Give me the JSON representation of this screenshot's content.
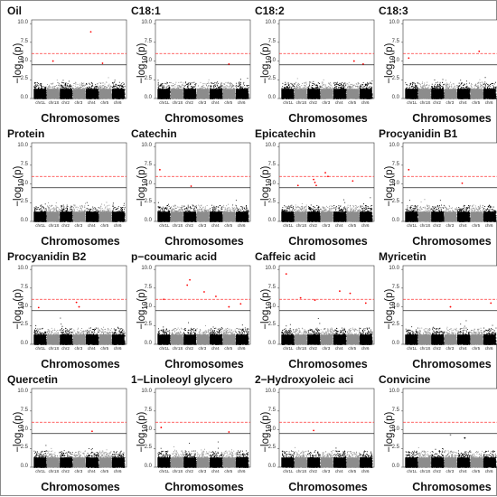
{
  "figure": {
    "panels": [
      {
        "title": "Oil"
      },
      {
        "title": "C18:1"
      },
      {
        "title": "C18:2"
      },
      {
        "title": "C18:3"
      },
      {
        "title": "Protein"
      },
      {
        "title": "Catechin"
      },
      {
        "title": "Epicatechin"
      },
      {
        "title": "Procyanidin B1"
      },
      {
        "title": "Procyanidin B2"
      },
      {
        "title": "p−coumaric acid"
      },
      {
        "title": "Caffeic acid"
      },
      {
        "title": "Myricetin"
      },
      {
        "title": "Quercetin"
      },
      {
        "title": "1−Linoleoyl glycero"
      },
      {
        "title": "2−Hydroxyoleic aci"
      },
      {
        "title": "Convicine"
      }
    ]
  },
  "chart_data": {
    "type": "scatter",
    "layout": "4x4 grid of Manhattan plots",
    "shared": {
      "xlabel": "Chromosomes",
      "ylabel_parts": [
        "−log",
        "10",
        "(p)"
      ],
      "chromosomes": [
        "chr1L",
        "chr1S",
        "chr2",
        "chr3",
        "chr4",
        "chr5",
        "chr6"
      ],
      "yticks": [
        "0.0",
        "2.5",
        "5.0",
        "7.5",
        "10.0"
      ],
      "ylim": [
        0,
        10.5
      ],
      "thresholds": [
        {
          "value": 6.0,
          "color": "#ff3333",
          "style": "dashed"
        },
        {
          "value": 4.5,
          "color": "#222222",
          "style": "solid"
        }
      ],
      "chromosome_colors": [
        "#000000",
        "#8c8c8c"
      ],
      "background_max_by_chromosome": [
        4.1,
        3.9,
        4.2,
        4.0,
        4.3,
        4.0,
        3.8
      ],
      "grid": false
    },
    "significant_points": [
      {
        "panel": "Oil",
        "points": [
          {
            "chr": "chr4",
            "pos": 0.4,
            "y": 8.9
          },
          {
            "chr": "chr5",
            "pos": 0.3,
            "y": 4.7
          },
          {
            "chr": "chr1S",
            "pos": 0.5,
            "y": 5.0
          }
        ]
      },
      {
        "panel": "C18:1",
        "points": [
          {
            "chr": "chr5",
            "pos": 0.5,
            "y": 4.6
          }
        ]
      },
      {
        "panel": "C18:2",
        "points": [
          {
            "chr": "chr5",
            "pos": 0.6,
            "y": 5.0
          },
          {
            "chr": "chr6",
            "pos": 0.3,
            "y": 4.6
          }
        ]
      },
      {
        "panel": "C18:3",
        "points": [
          {
            "chr": "chr5",
            "pos": 0.7,
            "y": 6.3
          },
          {
            "chr": "chr1L",
            "pos": 0.3,
            "y": 5.4
          }
        ]
      },
      {
        "panel": "Protein",
        "points": []
      },
      {
        "panel": "Catechin",
        "points": [
          {
            "chr": "chr1L",
            "pos": 0.2,
            "y": 6.9
          },
          {
            "chr": "chr2",
            "pos": 0.6,
            "y": 4.7
          }
        ]
      },
      {
        "panel": "Epicatechin",
        "points": [
          {
            "chr": "chr3",
            "pos": 0.4,
            "y": 6.5
          },
          {
            "chr": "chr3",
            "pos": 0.6,
            "y": 6.0
          },
          {
            "chr": "chr2",
            "pos": 0.5,
            "y": 5.6
          },
          {
            "chr": "chr2",
            "pos": 0.6,
            "y": 5.2
          },
          {
            "chr": "chr2",
            "pos": 0.7,
            "y": 4.8
          },
          {
            "chr": "chr5",
            "pos": 0.5,
            "y": 5.4
          },
          {
            "chr": "chr1S",
            "pos": 0.3,
            "y": 4.8
          }
        ]
      },
      {
        "panel": "Procyanidin B1",
        "points": [
          {
            "chr": "chr1L",
            "pos": 0.3,
            "y": 6.9
          },
          {
            "chr": "chr4",
            "pos": 0.4,
            "y": 5.1
          }
        ]
      },
      {
        "panel": "Procyanidin B2",
        "points": [
          {
            "chr": "chr3",
            "pos": 0.3,
            "y": 5.6
          },
          {
            "chr": "chr3",
            "pos": 0.5,
            "y": 5.0
          },
          {
            "chr": "chr1L",
            "pos": 0.4,
            "y": 4.9
          }
        ]
      },
      {
        "panel": "p−coumaric acid",
        "points": [
          {
            "chr": "chr2",
            "pos": 0.5,
            "y": 8.6
          },
          {
            "chr": "chr2",
            "pos": 0.3,
            "y": 7.9
          },
          {
            "chr": "chr3",
            "pos": 0.6,
            "y": 7.0
          },
          {
            "chr": "chr4",
            "pos": 0.5,
            "y": 6.4
          },
          {
            "chr": "chr1L",
            "pos": 0.5,
            "y": 6.0
          },
          {
            "chr": "chr6",
            "pos": 0.4,
            "y": 5.4
          },
          {
            "chr": "chr5",
            "pos": 0.5,
            "y": 5.0
          }
        ]
      },
      {
        "panel": "Caffeic acid",
        "points": [
          {
            "chr": "chr1L",
            "pos": 0.4,
            "y": 9.4
          },
          {
            "chr": "chr4",
            "pos": 0.5,
            "y": 7.1
          },
          {
            "chr": "chr5",
            "pos": 0.3,
            "y": 6.8
          },
          {
            "chr": "chr1S",
            "pos": 0.5,
            "y": 6.2
          },
          {
            "chr": "chr2",
            "pos": 0.6,
            "y": 5.9
          },
          {
            "chr": "chr6",
            "pos": 0.5,
            "y": 5.5
          }
        ]
      },
      {
        "panel": "Myricetin",
        "points": [
          {
            "chr": "chr6",
            "pos": 0.6,
            "y": 5.5
          },
          {
            "chr": "chr3",
            "pos": 0.5,
            "y": 5.0
          }
        ]
      },
      {
        "panel": "Quercetin",
        "points": [
          {
            "chr": "chr4",
            "pos": 0.5,
            "y": 4.8
          }
        ]
      },
      {
        "panel": "1−Linoleoyl glycero",
        "points": [
          {
            "chr": "chr1L",
            "pos": 0.3,
            "y": 5.3
          },
          {
            "chr": "chr5",
            "pos": 0.5,
            "y": 4.7
          }
        ]
      },
      {
        "panel": "2−Hydroxyoleic aci",
        "points": [
          {
            "chr": "chr2",
            "pos": 0.5,
            "y": 4.9
          }
        ]
      },
      {
        "panel": "Convicine",
        "points": [
          {
            "chr": "chr3",
            "pos": 0.5,
            "y": 4.3
          },
          {
            "chr": "chr4",
            "pos": 0.6,
            "y": 3.9
          }
        ]
      }
    ]
  }
}
